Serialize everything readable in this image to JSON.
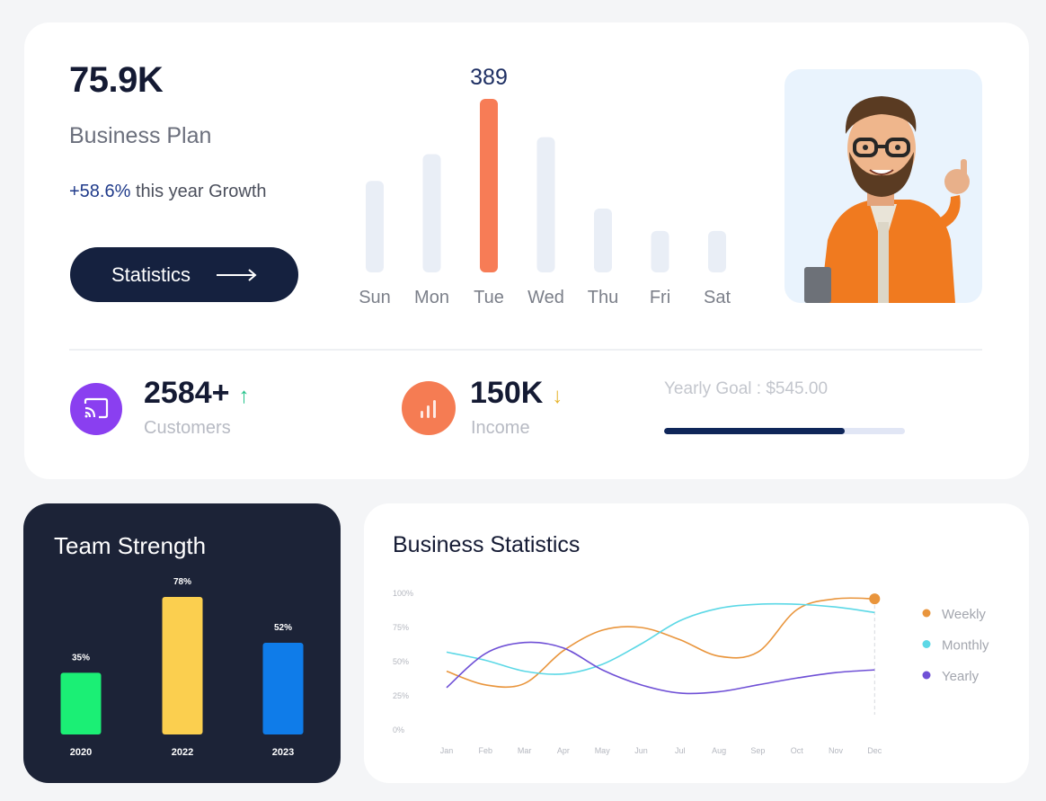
{
  "summary": {
    "value": "75.9K",
    "label": "Business Plan",
    "growth_pct": "+58.6%",
    "growth_text": " this year Growth",
    "button_label": "Statistics"
  },
  "weekly_chart": {
    "type": "bar",
    "categories": [
      "Sun",
      "Mon",
      "Tue",
      "Wed",
      "Thu",
      "Fri",
      "Sat"
    ],
    "values": [
      205,
      265,
      389,
      303,
      143,
      93,
      93
    ],
    "highlight_index": 2,
    "highlight_label": "389",
    "colors": {
      "bar": "#e9eef6",
      "highlight": "#f77c56",
      "label": "#1e2f63",
      "category": "#7b7f89"
    }
  },
  "metrics": {
    "customers": {
      "value": "2584+",
      "label": "Customers",
      "trend": "up",
      "color": "#8a3ff0"
    },
    "income": {
      "value": "150K",
      "label": "Income",
      "trend": "down",
      "color": "#f57c53"
    },
    "goal": {
      "label": "Yearly Goal : $545.00",
      "progress": 0.75
    }
  },
  "team": {
    "title": "Team Strength",
    "chart_data": {
      "type": "bar",
      "categories": [
        "2020",
        "2022",
        "2023"
      ],
      "values": [
        35,
        78,
        52
      ],
      "value_labels": [
        "35%",
        "78%",
        "52%"
      ],
      "colors": [
        "#1bef75",
        "#fbcf4f",
        "#0f7ce9"
      ]
    }
  },
  "business": {
    "title": "Business Statistics",
    "chart_data": {
      "type": "line",
      "x": [
        "Jan",
        "Feb",
        "Mar",
        "Apr",
        "May",
        "Jun",
        "Jul",
        "Aug",
        "Sep",
        "Oct",
        "Nov",
        "Dec"
      ],
      "ylim": [
        0,
        100
      ],
      "y_ticks": [
        "0%",
        "25%",
        "50%",
        "75%",
        "100%"
      ],
      "series": [
        {
          "name": "Weekly",
          "color": "#e9953c",
          "values": [
            43,
            33,
            34,
            58,
            73,
            75,
            66,
            54,
            57,
            88,
            96,
            96
          ]
        },
        {
          "name": "Monthly",
          "color": "#5cd8e6",
          "values": [
            57,
            51,
            43,
            41,
            48,
            63,
            80,
            89,
            92,
            92,
            90,
            86
          ]
        },
        {
          "name": "Yearly",
          "color": "#6f50d6",
          "values": [
            31,
            56,
            64,
            60,
            44,
            33,
            27,
            28,
            33,
            38,
            42,
            44
          ]
        }
      ],
      "legend_position": "right"
    }
  }
}
